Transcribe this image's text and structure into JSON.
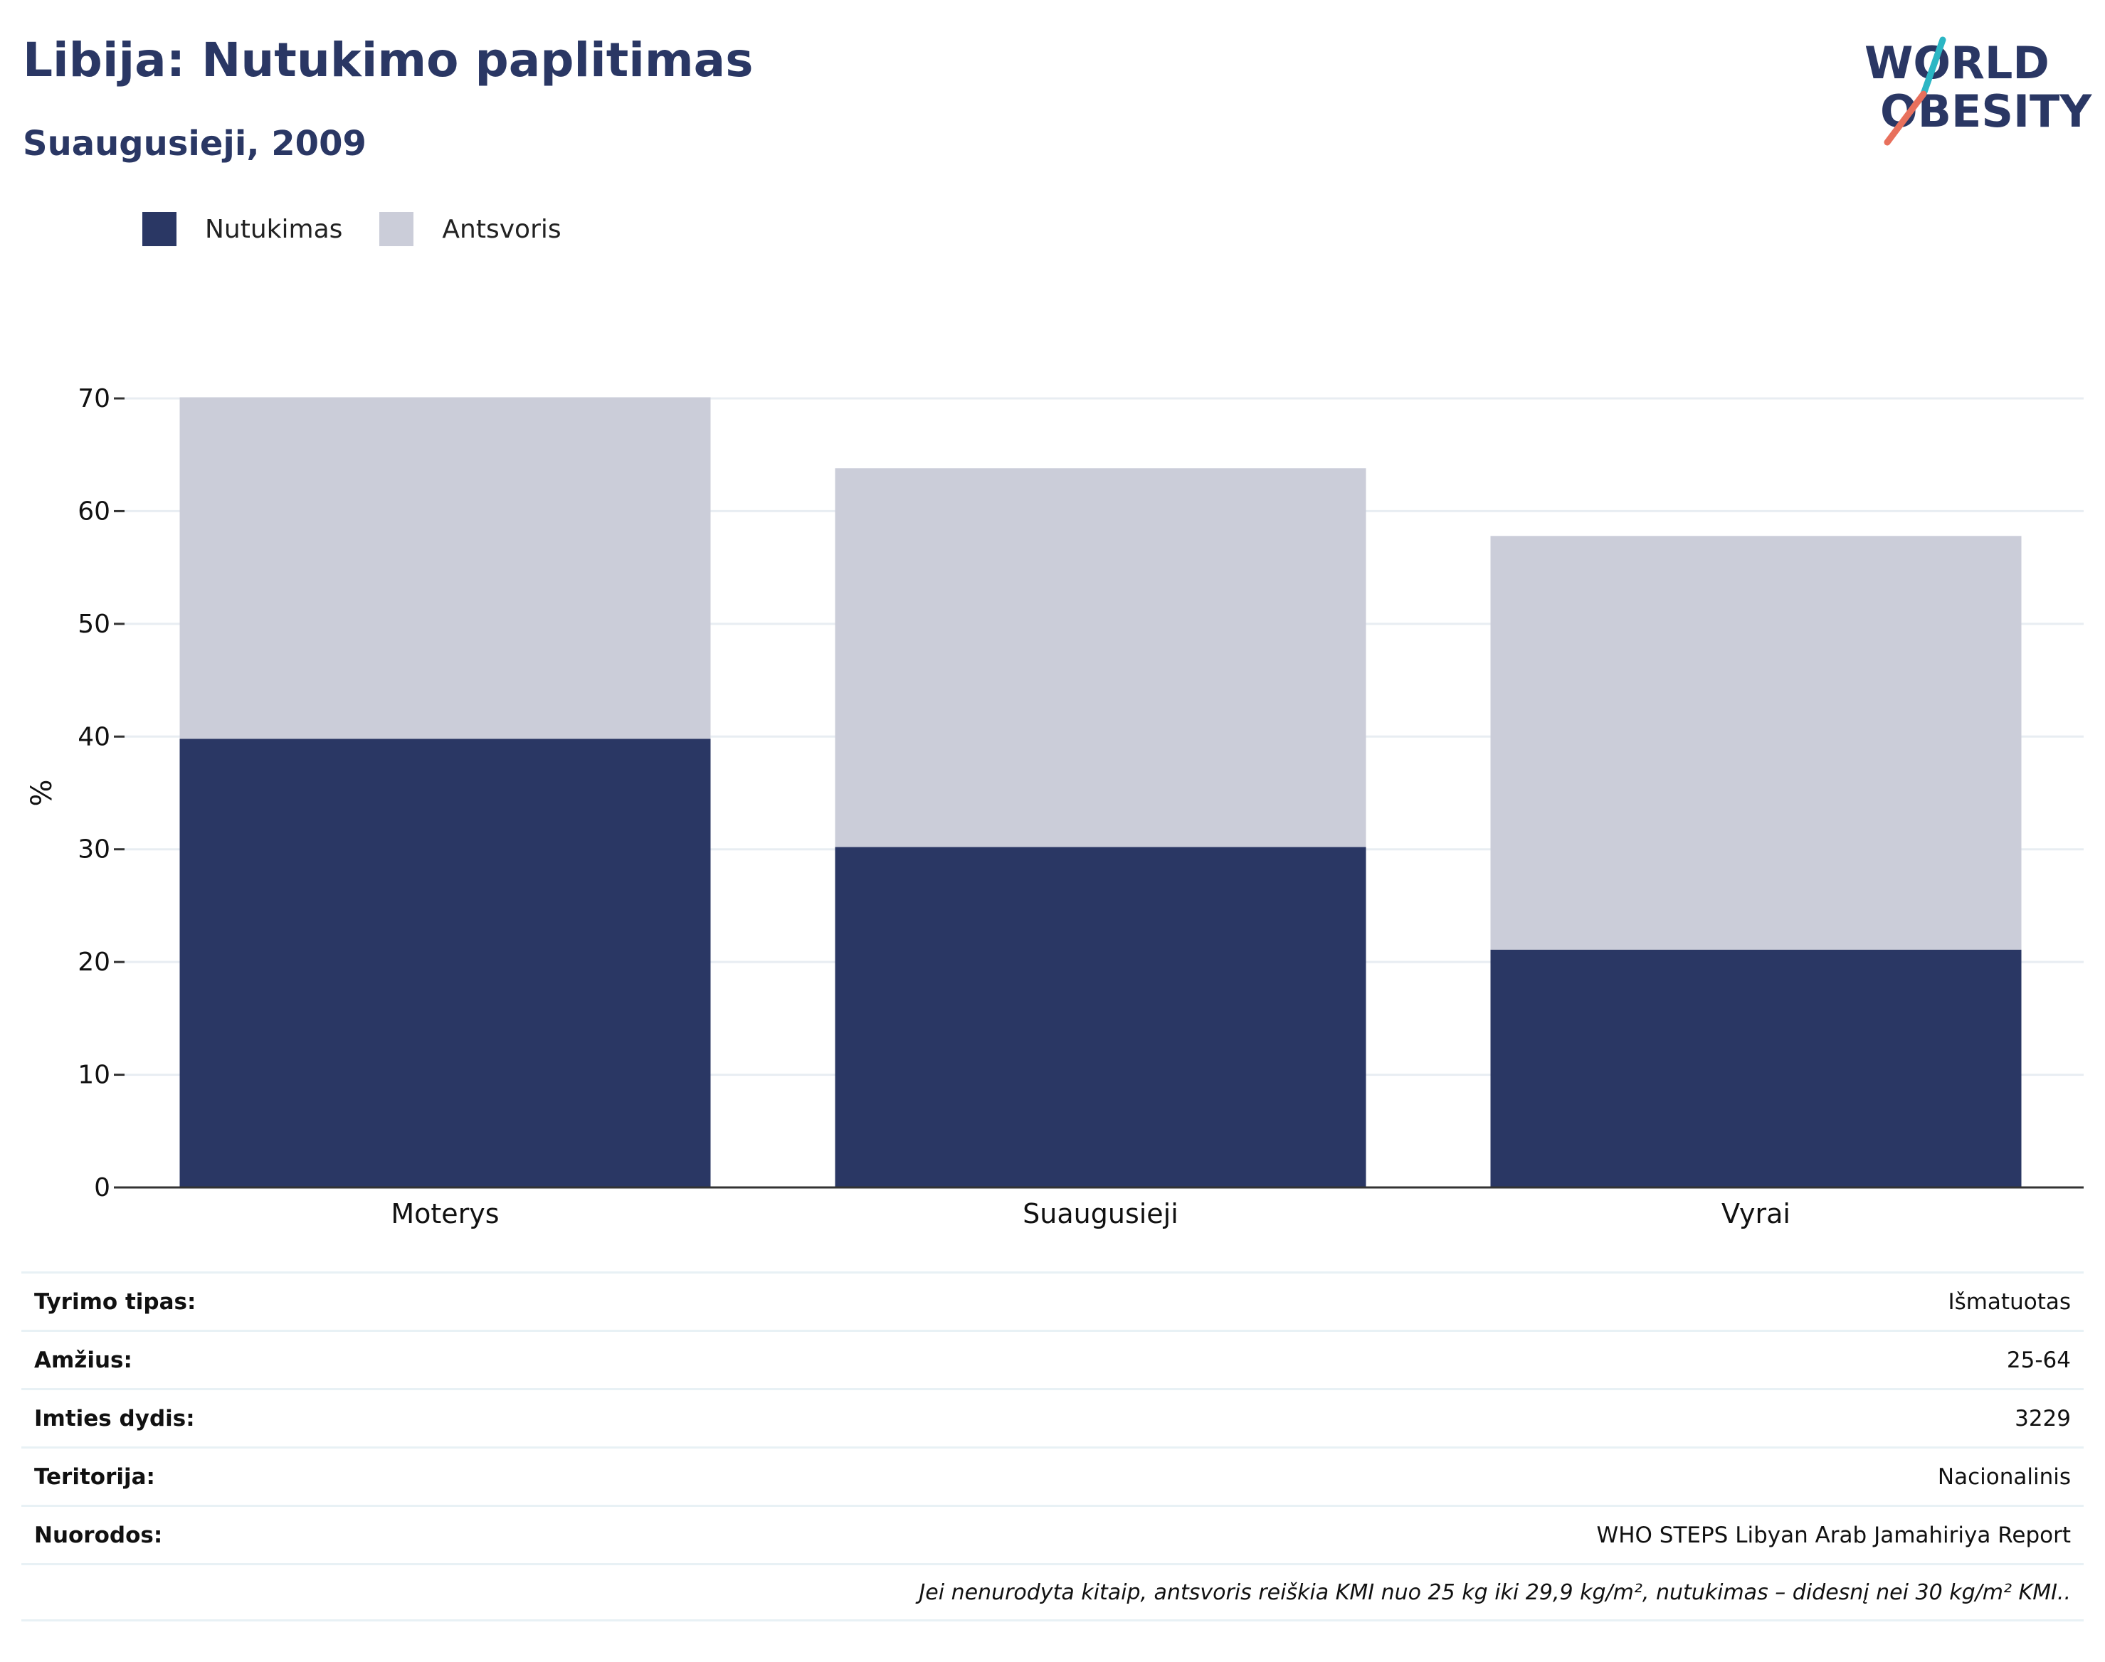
{
  "header": {
    "title": "Libija: Nutukimo paplitimas",
    "subtitle": "Suaugusieji, 2009"
  },
  "logo": {
    "line1": "WORLD",
    "line2": "OBESITY",
    "text_color": "#2a3764",
    "slash_top_color": "#2bb6c4",
    "slash_bottom_color": "#e8705c"
  },
  "legend": [
    {
      "label": "Nutukimas",
      "color": "#2a3764"
    },
    {
      "label": "Antsvoris",
      "color": "#cbcdd9"
    }
  ],
  "chart_data": {
    "type": "bar",
    "stacked": true,
    "categories": [
      "Moterys",
      "Suaugusieji",
      "Vyrai"
    ],
    "series": [
      {
        "name": "Nutukimas",
        "color": "#2a3764",
        "values": [
          39.8,
          30.2,
          21.1
        ]
      },
      {
        "name": "Antsvoris",
        "color": "#cbcdd9",
        "values": [
          30.3,
          33.6,
          36.7
        ]
      }
    ],
    "ylabel": "%",
    "ylim": [
      0,
      70
    ],
    "yticks": [
      0,
      10,
      20,
      30,
      40,
      50,
      60,
      70
    ],
    "grid": true,
    "legend_position": "top-left"
  },
  "info": [
    {
      "key": "Tyrimo tipas:",
      "value": "Išmatuotas"
    },
    {
      "key": "Amžius:",
      "value": "25-64"
    },
    {
      "key": "Imties dydis:",
      "value": "3229"
    },
    {
      "key": "Teritorija:",
      "value": "Nacionalinis"
    },
    {
      "key": "Nuorodos:",
      "value": "WHO STEPS Libyan Arab Jamahiriya Report"
    }
  ],
  "note": "Jei nenurodyta kitaip, antsvoris reiškia KMI nuo 25 kg iki 29,9 kg/m², nutukimas – didesnį nei 30 kg/m² KMI.."
}
